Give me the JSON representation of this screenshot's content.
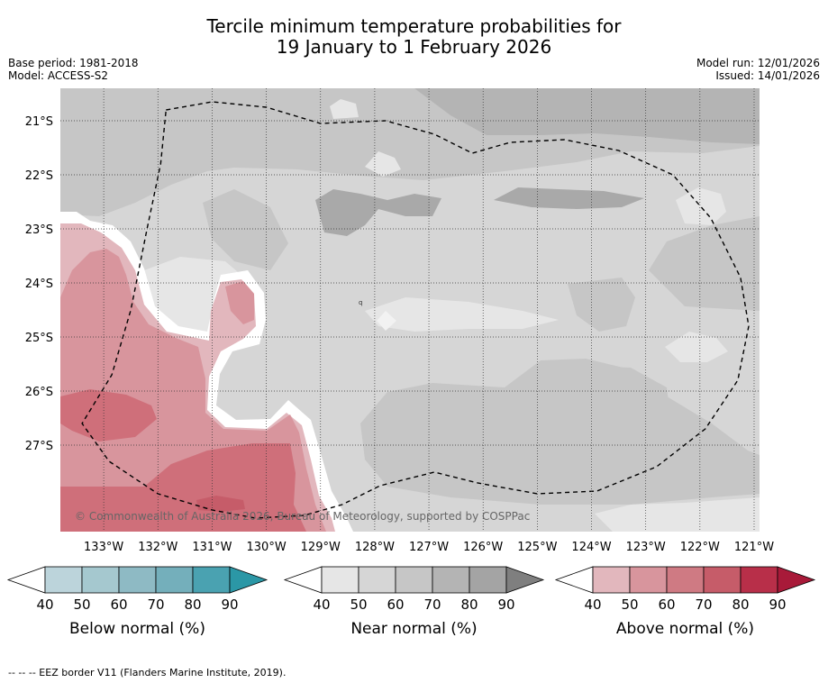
{
  "title_line1": "Tercile minimum temperature probabilities for",
  "title_line2": "19 January to 1 February 2026",
  "meta": {
    "base_period": "Base period: 1981-2018",
    "model": "Model: ACCESS-S2",
    "model_run": "Model run: 12/01/2026",
    "issued": "Issued: 14/01/2026"
  },
  "copyright": "© Commonwealth of Australia 2026, Bureau of Meteorology, supported by COSPPac",
  "footer": "--  --  -- EEZ border V11 (Flanders Marine Institute, 2019).",
  "colors": {
    "below": [
      "#bcd4db",
      "#a5c8cf",
      "#8ebac4",
      "#74afbb",
      "#4aa2b1",
      "#2b97a6"
    ],
    "near": [
      "#e6e6e6",
      "#d6d6d6",
      "#c6c6c6",
      "#b4b4b4",
      "#a4a4a4",
      "#7f7f7f"
    ],
    "above": [
      "#e2b7bd",
      "#d8959d",
      "#cf7a83",
      "#c65c69",
      "#b82f49",
      "#a81a39"
    ]
  },
  "chart_data": {
    "type": "heatmap",
    "title": "Tercile minimum temperature probabilities for 19 January to 1 February 2026",
    "x_ticks": [
      "133°W",
      "132°W",
      "131°W",
      "130°W",
      "129°W",
      "128°W",
      "127°W",
      "126°W",
      "125°W",
      "124°W",
      "123°W",
      "122°W",
      "121°W"
    ],
    "x_values": [
      -133,
      -132,
      -131,
      -130,
      -129,
      -128,
      -127,
      -126,
      -125,
      -124,
      -123,
      -122,
      -121
    ],
    "y_ticks": [
      "21°S",
      "22°S",
      "23°S",
      "24°S",
      "25°S",
      "26°S",
      "27°S"
    ],
    "y_values": [
      -21,
      -22,
      -23,
      -24,
      -25,
      -26,
      -27
    ],
    "xlim": [
      -133.8,
      -120.9
    ],
    "ylim": [
      -28.6,
      -20.4
    ],
    "grid": true,
    "annotations": [
      "q"
    ],
    "legends": [
      {
        "name": "Below normal (%)",
        "levels": [
          40,
          50,
          60,
          70,
          80,
          90
        ]
      },
      {
        "name": "Near normal (%)",
        "levels": [
          40,
          50,
          60,
          70,
          80,
          90
        ]
      },
      {
        "name": "Above normal (%)",
        "levels": [
          40,
          50,
          60,
          70,
          80,
          90
        ]
      }
    ],
    "eez_border_lonlat": [
      [
        -131.85,
        -20.8
      ],
      [
        -131.0,
        -20.65
      ],
      [
        -130.0,
        -20.75
      ],
      [
        -129.0,
        -21.05
      ],
      [
        -127.8,
        -21.0
      ],
      [
        -126.9,
        -21.25
      ],
      [
        -126.2,
        -21.6
      ],
      [
        -125.5,
        -21.4
      ],
      [
        -124.5,
        -21.35
      ],
      [
        -123.5,
        -21.55
      ],
      [
        -122.5,
        -22.0
      ],
      [
        -121.8,
        -22.8
      ],
      [
        -121.25,
        -23.9
      ],
      [
        -121.1,
        -24.8
      ],
      [
        -121.3,
        -25.8
      ],
      [
        -121.9,
        -26.7
      ],
      [
        -122.8,
        -27.4
      ],
      [
        -123.9,
        -27.85
      ],
      [
        -125.0,
        -27.9
      ],
      [
        -126.1,
        -27.7
      ],
      [
        -126.9,
        -27.5
      ],
      [
        -127.9,
        -27.75
      ],
      [
        -128.6,
        -28.1
      ],
      [
        -129.3,
        -28.3
      ],
      [
        -130.2,
        -28.35
      ],
      [
        -131.0,
        -28.2
      ],
      [
        -132.0,
        -27.9
      ],
      [
        -132.9,
        -27.3
      ],
      [
        -133.4,
        -26.6
      ],
      [
        -132.85,
        -25.7
      ],
      [
        -132.5,
        -24.5
      ],
      [
        -132.2,
        -23.0
      ],
      [
        -131.95,
        -21.8
      ],
      [
        -131.85,
        -20.8
      ]
    ]
  }
}
